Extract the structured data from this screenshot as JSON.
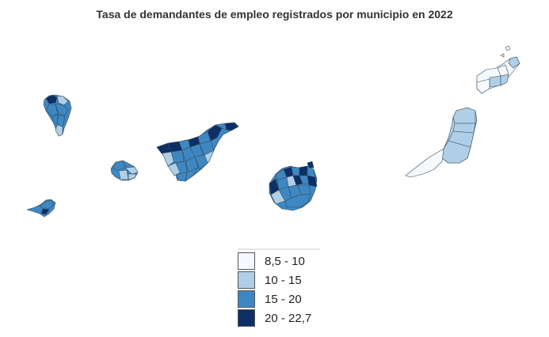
{
  "title": "Tasa de demandantes de empleo registrados por municipio en 2022",
  "legend": [
    {
      "label": "8,5 - 10",
      "color": "#f5f9fd"
    },
    {
      "label": "10 - 15",
      "color": "#aecfe7"
    },
    {
      "label": "15 - 20",
      "color": "#3d88c3"
    },
    {
      "label": "20 - 22,7",
      "color": "#0c2f66"
    }
  ],
  "islands": [
    {
      "name": "La Palma",
      "color_class": "15 - 20"
    },
    {
      "name": "El Hierro",
      "color_class": "15 - 20"
    },
    {
      "name": "La Gomera",
      "color_class": "15 - 20"
    },
    {
      "name": "Tenerife",
      "color_class": "15 - 20"
    },
    {
      "name": "Gran Canaria",
      "color_class": "15 - 20"
    },
    {
      "name": "Fuerteventura",
      "color_class": "10 - 15"
    },
    {
      "name": "Lanzarote",
      "color_class": "10 - 15"
    }
  ]
}
